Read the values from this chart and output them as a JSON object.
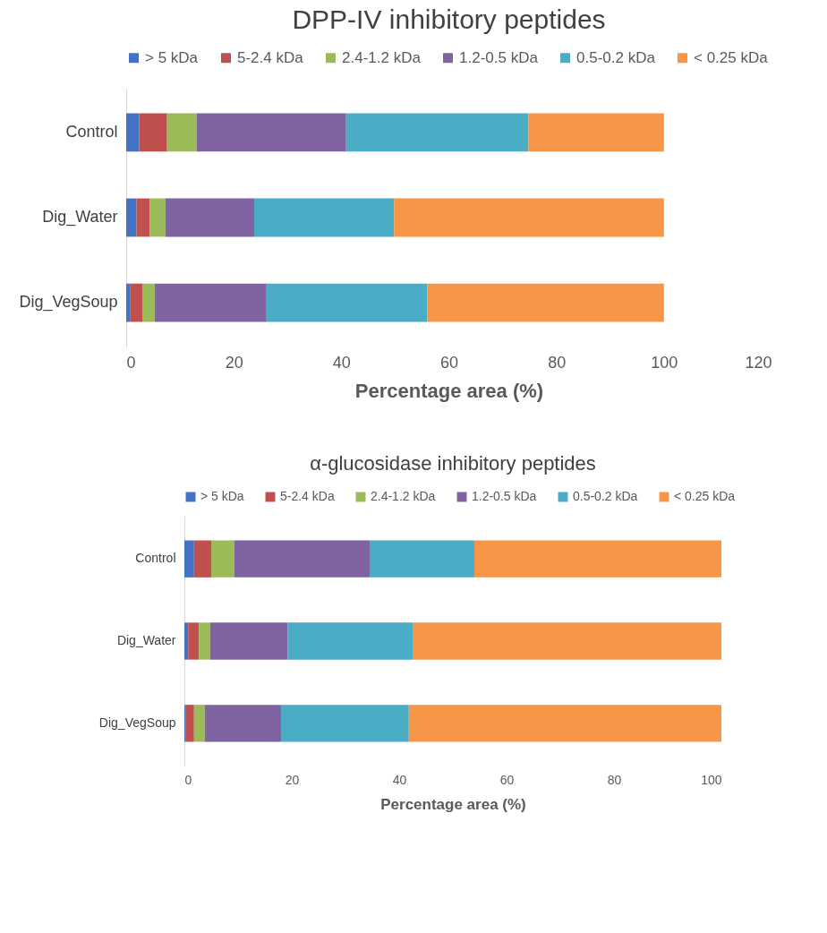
{
  "chart_data": [
    {
      "type": "bar",
      "title": "DPP-IV inhibitory peptides",
      "xlabel": "Percentage area (%)",
      "orientation": "horizontal",
      "stacked": true,
      "legend": "top",
      "grid": false,
      "categories": [
        "Control",
        "Dig_Water",
        "Dig_VegSoup"
      ],
      "xlim": [
        0,
        120
      ],
      "xticks": [
        0,
        20,
        40,
        60,
        80,
        100,
        120
      ],
      "series": [
        {
          "name": "> 5 kDa",
          "color": "#4472c4",
          "values": [
            2.4,
            1.9,
            0.8
          ]
        },
        {
          "name": "5-2.4 kDa",
          "color": "#c0504d",
          "values": [
            5.2,
            2.5,
            2.3
          ]
        },
        {
          "name": "2.4-1.2 kDa",
          "color": "#9bbb59",
          "values": [
            5.5,
            2.9,
            2.2
          ]
        },
        {
          "name": "1.2-0.5 kDa",
          "color": "#8064a2",
          "values": [
            27.8,
            16.5,
            20.8
          ]
        },
        {
          "name": "0.5-0.2 kDa",
          "color": "#4bacc6",
          "values": [
            33.9,
            26.0,
            29.9
          ]
        },
        {
          "name": "< 0.25 kDa",
          "color": "#f79646",
          "values": [
            25.2,
            50.2,
            44.0
          ]
        }
      ]
    },
    {
      "type": "bar",
      "title": "α-glucosidase inhibitory peptides",
      "xlabel": "Percentage area (%)",
      "orientation": "horizontal",
      "stacked": true,
      "legend": "top",
      "grid": false,
      "categories": [
        "Control",
        "Dig_Water",
        "Dig_VegSoup"
      ],
      "xlim": [
        0,
        100
      ],
      "xticks": [
        0,
        20,
        40,
        60,
        80,
        100
      ],
      "series": [
        {
          "name": "> 5 kDa",
          "color": "#4472c4",
          "values": [
            1.8,
            0.7,
            0.3
          ]
        },
        {
          "name": "5-2.4 kDa",
          "color": "#c0504d",
          "values": [
            3.2,
            2.0,
            1.5
          ]
        },
        {
          "name": "2.4-1.2 kDa",
          "color": "#9bbb59",
          "values": [
            4.3,
            2.1,
            2.0
          ]
        },
        {
          "name": "1.2-0.5 kDa",
          "color": "#8064a2",
          "values": [
            25.2,
            14.4,
            14.2
          ]
        },
        {
          "name": "0.5-0.2 kDa",
          "color": "#4bacc6",
          "values": [
            19.5,
            23.3,
            23.8
          ]
        },
        {
          "name": "< 0.25 kDa",
          "color": "#f79646",
          "values": [
            46.0,
            57.5,
            58.2
          ]
        }
      ]
    }
  ]
}
